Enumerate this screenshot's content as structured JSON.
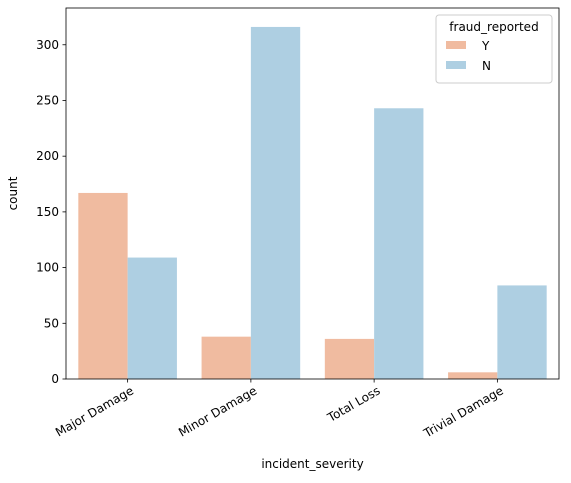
{
  "chart_data": {
    "type": "bar",
    "xlabel": "incident_severity",
    "ylabel": "count",
    "categories": [
      "Major Damage",
      "Minor Damage",
      "Total Loss",
      "Trivial Damage"
    ],
    "series": [
      {
        "name": "Y",
        "values": [
          167,
          38,
          36,
          6
        ],
        "color": "#f0bba0"
      },
      {
        "name": "N",
        "values": [
          109,
          316,
          243,
          84
        ],
        "color": "#aecfe2"
      }
    ],
    "ylim": [
      0,
      333
    ],
    "yticks": [
      0,
      50,
      100,
      150,
      200,
      250,
      300
    ],
    "legend": {
      "title": "fraud_reported",
      "placement": "top-right"
    },
    "grid": false
  }
}
